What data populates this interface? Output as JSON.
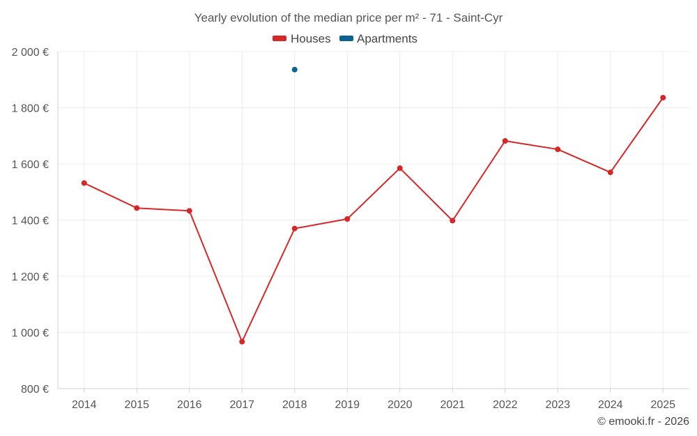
{
  "chart_data": {
    "type": "line",
    "title": "Yearly evolution of the median price per m² - 71 - Saint-Cyr",
    "categories": [
      "2014",
      "2015",
      "2016",
      "2017",
      "2018",
      "2019",
      "2020",
      "2021",
      "2022",
      "2023",
      "2024",
      "2025"
    ],
    "y_ticks": [
      "800 €",
      "1 000 €",
      "1 200 €",
      "1 400 €",
      "1 600 €",
      "1 800 €",
      "2 000 €"
    ],
    "ylim": [
      800,
      2000
    ],
    "grid": true,
    "legend_position": "top-center",
    "series": [
      {
        "name": "Houses",
        "color": "#d62728",
        "values": [
          1532,
          1443,
          1433,
          967,
          1370,
          1404,
          1585,
          1398,
          1682,
          1652,
          1570,
          1836
        ]
      },
      {
        "name": "Apartments",
        "color": "#0b6394",
        "values": [
          null,
          null,
          null,
          null,
          1936,
          null,
          null,
          null,
          null,
          null,
          null,
          null
        ]
      }
    ]
  },
  "credit": "© emooki.fr - 2026"
}
